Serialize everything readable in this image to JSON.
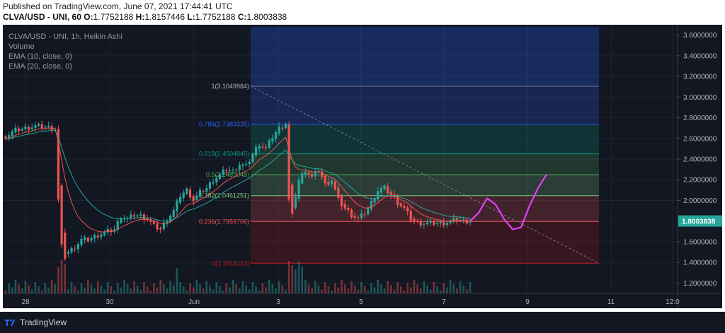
{
  "header": {
    "published": "Published on TradingView.com, June 07, 2021 17:44:41 UTC",
    "symbol": "CLVA/USD - UNI, 60",
    "o_label": "O:",
    "o": "1.7752188",
    "h_label": "H:",
    "h": "1.8157446",
    "l_label": "L:",
    "l": "1.7752188",
    "c_label": "C:",
    "c": "1.8003838"
  },
  "legend": {
    "title": "CLVA/USD - UNI, 1h, Heikin Ashi",
    "volume": "Volume",
    "ema10": "EMA (10, close, 0)",
    "ema20": "EMA (20, close, 0)"
  },
  "footer": {
    "brand": "TradingView"
  },
  "colors": {
    "background": "#131722",
    "up": "#26a69a",
    "down": "#ef5350",
    "ema10": "#ef5350",
    "ema20": "#26a69a",
    "projection": "#e040fb",
    "last_price_bg": "#26a69a"
  },
  "chart_data": {
    "type": "candlestick",
    "style": "Heikin Ashi",
    "y_axis": {
      "min": 1.1,
      "max": 3.7,
      "ticks": [
        3.6,
        3.4,
        3.2,
        3.0,
        2.8,
        2.6,
        2.4,
        2.2,
        2.0,
        1.8,
        1.6,
        1.4,
        1.2
      ],
      "tick_labels": [
        "3.6000000",
        "3.4000000",
        "3.2000000",
        "3.0000000",
        "2.8000000",
        "2.6000000",
        "2.4000000",
        "2.2000000",
        "2.0000000",
        "1.8000000",
        "1.6000000",
        "1.4000000",
        "1.2000000"
      ]
    },
    "x_axis": {
      "tick_labels": [
        "28",
        "30",
        "Jun",
        "3",
        "5",
        "7",
        "9",
        "11",
        "12:0"
      ]
    },
    "last_price": "1.8003838",
    "candle_path": [
      [
        0,
        2.62
      ],
      [
        3,
        2.68
      ],
      [
        6,
        2.7
      ],
      [
        9,
        2.72
      ],
      [
        12,
        2.71
      ],
      [
        15,
        2.7
      ],
      [
        16,
        2.0
      ],
      [
        17,
        1.55
      ],
      [
        18,
        1.45
      ],
      [
        19,
        1.5
      ],
      [
        21,
        1.55
      ],
      [
        23,
        1.62
      ],
      [
        25,
        1.62
      ],
      [
        27,
        1.65
      ],
      [
        29,
        1.68
      ],
      [
        31,
        1.7
      ],
      [
        33,
        1.72
      ],
      [
        35,
        1.85
      ],
      [
        37,
        1.82
      ],
      [
        39,
        1.86
      ],
      [
        41,
        1.85
      ],
      [
        43,
        1.82
      ],
      [
        45,
        1.75
      ],
      [
        47,
        1.72
      ],
      [
        49,
        1.82
      ],
      [
        51,
        1.9
      ],
      [
        53,
        2.05
      ],
      [
        55,
        2.1
      ],
      [
        57,
        2.0
      ],
      [
        59,
        2.08
      ],
      [
        61,
        2.12
      ],
      [
        63,
        2.2
      ],
      [
        65,
        2.25
      ],
      [
        67,
        2.3
      ],
      [
        69,
        2.28
      ],
      [
        71,
        2.35
      ],
      [
        73,
        2.33
      ],
      [
        75,
        2.45
      ],
      [
        77,
        2.55
      ],
      [
        79,
        2.5
      ],
      [
        81,
        2.62
      ],
      [
        83,
        2.7
      ],
      [
        85,
        2.75
      ],
      [
        86,
        2.0
      ],
      [
        87,
        1.85
      ],
      [
        88,
        2.05
      ],
      [
        89,
        2.2
      ],
      [
        91,
        2.3
      ],
      [
        93,
        2.22
      ],
      [
        95,
        2.3
      ],
      [
        97,
        2.15
      ],
      [
        99,
        2.2
      ],
      [
        101,
        2.0
      ],
      [
        103,
        1.92
      ],
      [
        105,
        1.86
      ],
      [
        107,
        1.82
      ],
      [
        109,
        1.88
      ],
      [
        111,
        1.98
      ],
      [
        113,
        2.1
      ],
      [
        115,
        2.12
      ],
      [
        117,
        2.05
      ],
      [
        119,
        1.98
      ],
      [
        121,
        1.92
      ],
      [
        123,
        1.82
      ],
      [
        125,
        1.78
      ],
      [
        127,
        1.78
      ],
      [
        129,
        1.78
      ],
      [
        131,
        1.78
      ],
      [
        133,
        1.78
      ],
      [
        135,
        1.8
      ],
      [
        137,
        1.82
      ],
      [
        139,
        1.8
      ],
      [
        141,
        1.8
      ]
    ],
    "fibonacci": {
      "levels": [
        {
          "ratio": "1",
          "price": 3.1049984,
          "label": "1(3.1049984)",
          "fill": "#787b86"
        },
        {
          "ratio": "0.786",
          "price": 2.7383335,
          "label": "0.786(2.7383335)",
          "fill": "#2962ff"
        },
        {
          "ratio": "0.618",
          "price": 2.4504845,
          "label": "0.618(2.4504845)",
          "fill": "#089981"
        },
        {
          "ratio": "0.5",
          "price": 2.2483048,
          "label": "0.5(2.2483048)",
          "fill": "#4caf50"
        },
        {
          "ratio": "0.382",
          "price": 2.0461251,
          "label": "0.382(2.0461251)",
          "fill": "#81c784"
        },
        {
          "ratio": "0.236",
          "price": 1.7959706,
          "label": "0.236(1.7959706)",
          "fill": "#ef5350"
        },
        {
          "ratio": "0",
          "price": 1.3916113,
          "label": "0(1.3916113)",
          "fill": "#b71c1c"
        }
      ],
      "top_extension_price": 3.68
    },
    "projection_path": [
      [
        1.8
      ],
      [
        1.88
      ],
      [
        2.02
      ],
      [
        1.96
      ],
      [
        1.82
      ],
      [
        1.72
      ],
      [
        1.74
      ],
      [
        1.95
      ],
      [
        2.12
      ],
      [
        2.25
      ]
    ]
  }
}
